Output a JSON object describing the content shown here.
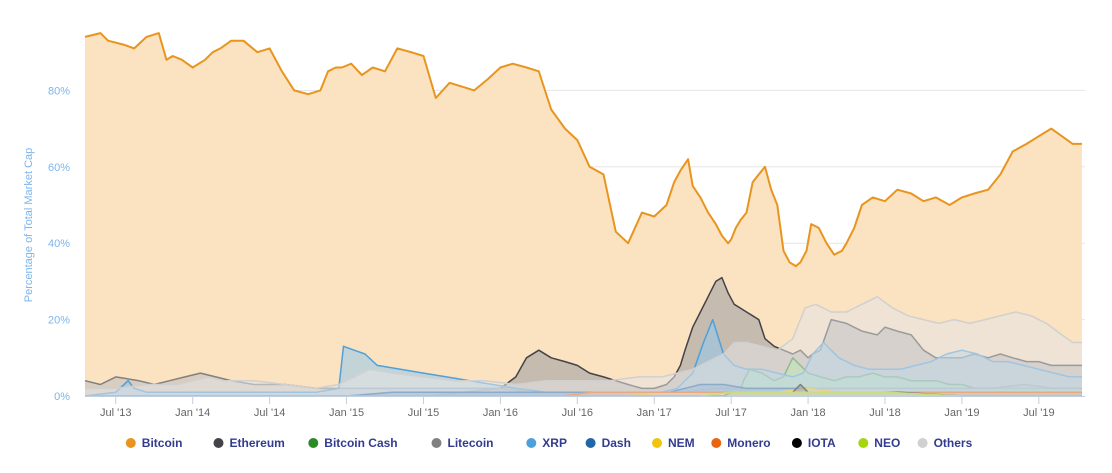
{
  "chart_data": {
    "type": "area",
    "ylabel": "Percentage of Total Market Cap",
    "xlabel": "",
    "ylim": [
      0,
      100
    ],
    "yticks": [
      0,
      20,
      40,
      60,
      80
    ],
    "ytick_labels": [
      "0%",
      "20%",
      "40%",
      "60%",
      "80%"
    ],
    "xticks": [
      {
        "x": 2013.5,
        "label": "Jul '13"
      },
      {
        "x": 2014.0,
        "label": "Jan '14"
      },
      {
        "x": 2014.5,
        "label": "Jul '14"
      },
      {
        "x": 2015.0,
        "label": "Jan '15"
      },
      {
        "x": 2015.5,
        "label": "Jul '15"
      },
      {
        "x": 2016.0,
        "label": "Jan '16"
      },
      {
        "x": 2016.5,
        "label": "Jul '16"
      },
      {
        "x": 2017.0,
        "label": "Jan '17"
      },
      {
        "x": 2017.5,
        "label": "Jul '17"
      },
      {
        "x": 2018.0,
        "label": "Jan '18"
      },
      {
        "x": 2018.5,
        "label": "Jul '18"
      },
      {
        "x": 2019.0,
        "label": "Jan '19"
      },
      {
        "x": 2019.5,
        "label": "Jul '19"
      }
    ],
    "xlim": [
      2013.3,
      2019.8
    ],
    "grid": true,
    "legend_position": "bottom",
    "series": [
      {
        "name": "Bitcoin",
        "color": "#e8951f",
        "fill": "#fbe2c1",
        "x": [
          2013.3,
          2013.4,
          2013.45,
          2013.55,
          2013.62,
          2013.7,
          2013.78,
          2013.83,
          2013.87,
          2013.93,
          2014.0,
          2014.08,
          2014.13,
          2014.18,
          2014.25,
          2014.33,
          2014.42,
          2014.5,
          2014.58,
          2014.66,
          2014.75,
          2014.83,
          2014.88,
          2014.93,
          2014.97,
          2015.03,
          2015.1,
          2015.17,
          2015.25,
          2015.33,
          2015.42,
          2015.5,
          2015.58,
          2015.67,
          2015.75,
          2015.83,
          2015.92,
          2016.0,
          2016.08,
          2016.17,
          2016.25,
          2016.33,
          2016.42,
          2016.5,
          2016.58,
          2016.67,
          2016.75,
          2016.83,
          2016.92,
          2017.0,
          2017.08,
          2017.13,
          2017.17,
          2017.22,
          2017.25,
          2017.3,
          2017.35,
          2017.4,
          2017.44,
          2017.48,
          2017.5,
          2017.53,
          2017.56,
          2017.6,
          2017.64,
          2017.68,
          2017.72,
          2017.76,
          2017.8,
          2017.84,
          2017.88,
          2017.92,
          2017.95,
          2017.99,
          2018.02,
          2018.07,
          2018.12,
          2018.17,
          2018.22,
          2018.25,
          2018.3,
          2018.35,
          2018.42,
          2018.5,
          2018.58,
          2018.67,
          2018.75,
          2018.83,
          2018.92,
          2019.0,
          2019.08,
          2019.17,
          2019.25,
          2019.33,
          2019.42,
          2019.5,
          2019.58,
          2019.65,
          2019.72,
          2019.78
        ],
        "y": [
          94,
          95,
          93,
          92,
          91,
          94,
          95,
          88,
          89,
          88,
          86,
          88,
          90,
          91,
          93,
          93,
          90,
          91,
          85,
          80,
          79,
          80,
          85,
          86,
          86,
          87,
          84,
          86,
          85,
          91,
          90,
          89,
          78,
          82,
          81,
          80,
          83,
          86,
          87,
          86,
          85,
          75,
          70,
          67,
          60,
          58,
          43,
          40,
          48,
          47,
          50,
          56,
          59,
          62,
          55,
          52,
          48,
          45,
          42,
          40,
          41,
          44,
          46,
          48,
          56,
          58,
          60,
          54,
          50,
          38,
          35,
          34,
          35,
          38,
          45,
          44,
          40,
          37,
          38,
          40,
          44,
          50,
          52,
          51,
          54,
          53,
          51,
          52,
          50,
          52,
          53,
          54,
          58,
          64,
          66,
          68,
          70,
          68,
          66,
          66
        ]
      },
      {
        "name": "Ethereum",
        "color": "#434348",
        "fill": "#9a9aa0",
        "x": [
          2013.3,
          2015.55,
          2015.75,
          2016.0,
          2016.1,
          2016.17,
          2016.25,
          2016.33,
          2016.42,
          2016.5,
          2016.58,
          2016.67,
          2016.75,
          2016.83,
          2016.92,
          2017.0,
          2017.08,
          2017.13,
          2017.17,
          2017.2,
          2017.25,
          2017.3,
          2017.35,
          2017.4,
          2017.44,
          2017.48,
          2017.52,
          2017.56,
          2017.6,
          2017.64,
          2017.68,
          2017.72,
          2017.78,
          2017.84,
          2017.9,
          2017.95,
          2018.0,
          2018.03,
          2018.08,
          2018.15,
          2018.25,
          2018.35,
          2018.45,
          2018.5,
          2018.58,
          2018.67,
          2018.75,
          2018.83,
          2018.92,
          2019.0,
          2019.08,
          2019.17,
          2019.25,
          2019.33,
          2019.42,
          2019.5,
          2019.58,
          2019.65,
          2019.72,
          2019.78
        ],
        "y": [
          0,
          0,
          1,
          2,
          5,
          10,
          12,
          10,
          9,
          8,
          6,
          5,
          4,
          3,
          2,
          2,
          3,
          5,
          8,
          12,
          18,
          22,
          26,
          30,
          31,
          27,
          24,
          23,
          22,
          21,
          20,
          15,
          13,
          12,
          11,
          12,
          10,
          11,
          12,
          20,
          19,
          17,
          16,
          18,
          17,
          16,
          12,
          10,
          10,
          10,
          11,
          10,
          11,
          10,
          9,
          9,
          8,
          8,
          8,
          8
        ]
      },
      {
        "name": "Bitcoin Cash",
        "color": "#2b8a28",
        "fill": "#90ed7d",
        "x": [
          2013.3,
          2017.55,
          2017.58,
          2017.62,
          2017.7,
          2017.78,
          2017.84,
          2017.9,
          2017.95,
          2018.0,
          2018.08,
          2018.17,
          2018.25,
          2018.33,
          2018.42,
          2018.5,
          2018.58,
          2018.67,
          2018.75,
          2018.83,
          2018.92,
          2019.0,
          2019.08,
          2019.17,
          2019.25,
          2019.33,
          2019.42,
          2019.5,
          2019.58,
          2019.65,
          2019.72,
          2019.78
        ],
        "y": [
          0,
          0,
          4,
          7,
          6,
          4,
          5,
          10,
          8,
          6,
          5,
          4,
          5,
          5,
          6,
          5,
          5,
          4,
          4,
          4,
          3,
          3,
          2,
          2,
          2,
          2,
          2,
          2,
          2,
          2,
          2,
          2
        ]
      },
      {
        "name": "Litecoin",
        "color": "#808080",
        "fill": "#bcbcbc",
        "x": [
          2013.3,
          2013.4,
          2013.5,
          2013.65,
          2013.75,
          2013.85,
          2013.95,
          2014.05,
          2014.15,
          2014.25,
          2014.4,
          2014.6,
          2014.8,
          2015.0,
          2015.2,
          2015.4,
          2015.6,
          2015.8,
          2016.0,
          2016.2,
          2016.4,
          2016.6,
          2016.8,
          2017.0,
          2017.2,
          2017.4,
          2017.6,
          2017.8,
          2018.0,
          2018.2,
          2018.4,
          2018.6,
          2018.8,
          2019.0,
          2019.2,
          2019.4,
          2019.6,
          2019.78
        ],
        "y": [
          4,
          3,
          5,
          4,
          3,
          4,
          5,
          6,
          5,
          4,
          3,
          3,
          2,
          2,
          2,
          2,
          2,
          2,
          2,
          1,
          1,
          1,
          1,
          1,
          1,
          2,
          2,
          2,
          2,
          2,
          2,
          2,
          2,
          2,
          2,
          3,
          2,
          2
        ]
      },
      {
        "name": "XRP",
        "color": "#4ea0dc",
        "fill": "#95c8ec",
        "x": [
          2013.3,
          2013.5,
          2013.58,
          2013.62,
          2013.7,
          2013.8,
          2014.0,
          2014.2,
          2014.4,
          2014.6,
          2014.8,
          2014.95,
          2014.98,
          2015.05,
          2015.12,
          2015.2,
          2015.35,
          2015.5,
          2015.65,
          2015.8,
          2015.95,
          2016.1,
          2016.3,
          2016.5,
          2016.7,
          2016.9,
          2017.05,
          2017.15,
          2017.25,
          2017.32,
          2017.38,
          2017.45,
          2017.52,
          2017.6,
          2017.7,
          2017.8,
          2017.9,
          2017.97,
          2018.03,
          2018.1,
          2018.2,
          2018.3,
          2018.4,
          2018.5,
          2018.6,
          2018.7,
          2018.8,
          2018.9,
          2019.0,
          2019.1,
          2019.2,
          2019.3,
          2019.4,
          2019.5,
          2019.6,
          2019.7,
          2019.78
        ],
        "y": [
          0,
          1,
          4,
          2,
          1,
          1,
          1,
          1,
          1,
          1,
          1,
          2,
          13,
          12,
          11,
          8,
          7,
          6,
          5,
          4,
          3,
          2,
          1,
          1,
          1,
          1,
          1,
          2,
          6,
          14,
          20,
          11,
          8,
          7,
          7,
          6,
          5,
          6,
          11,
          14,
          10,
          8,
          7,
          7,
          7,
          8,
          9,
          11,
          12,
          11,
          9,
          9,
          8,
          7,
          6,
          5,
          5
        ]
      },
      {
        "name": "Dash",
        "color": "#2266aa",
        "fill": "#5f8fc3",
        "x": [
          2013.3,
          2015.0,
          2015.3,
          2015.6,
          2016.0,
          2016.2,
          2016.4,
          2016.6,
          2016.8,
          2017.0,
          2017.1,
          2017.2,
          2017.3,
          2017.45,
          2017.6,
          2017.8,
          2018.0,
          2018.2,
          2018.4,
          2018.6,
          2018.8,
          2019.0,
          2019.2,
          2019.4,
          2019.6,
          2019.78
        ],
        "y": [
          0,
          0,
          1,
          1,
          1,
          1,
          1,
          1,
          1,
          1,
          1,
          2,
          3,
          3,
          2,
          2,
          2,
          1,
          1,
          1,
          1,
          1,
          1,
          1,
          1,
          1
        ]
      },
      {
        "name": "NEM",
        "color": "#f1c40f",
        "fill": "#f7e08a",
        "x": [
          2013.3,
          2016.8,
          2017.1,
          2017.3,
          2017.5,
          2017.8,
          2018.0,
          2018.2,
          2018.4,
          2018.6,
          2018.8,
          2019.0,
          2019.4,
          2019.78
        ],
        "y": [
          0,
          0,
          1,
          1,
          1,
          1,
          2,
          1,
          1,
          1,
          0,
          0,
          0,
          0
        ]
      },
      {
        "name": "Monero",
        "color": "#e8660e",
        "fill": "#f3a56e",
        "x": [
          2013.3,
          2016.4,
          2016.6,
          2017.0,
          2017.4,
          2017.8,
          2018.0,
          2018.4,
          2018.8,
          2019.2,
          2019.78
        ],
        "y": [
          0,
          0,
          1,
          1,
          1,
          1,
          1,
          1,
          1,
          1,
          1
        ]
      },
      {
        "name": "IOTA",
        "color": "#000000",
        "fill": "#555555",
        "x": [
          2013.3,
          2017.45,
          2017.5,
          2017.7,
          2017.9,
          2017.95,
          2018.0,
          2018.3,
          2018.6,
          2019.0,
          2019.78
        ],
        "y": [
          0,
          0,
          1,
          1,
          1,
          3,
          1,
          1,
          1,
          0,
          0
        ]
      },
      {
        "name": "NEO",
        "color": "#a6d60f",
        "fill": "#d6ee86",
        "x": [
          2013.3,
          2017.3,
          2017.5,
          2017.8,
          2018.0,
          2018.2,
          2018.5,
          2019.0,
          2019.78
        ],
        "y": [
          0,
          0,
          1,
          1,
          1,
          1,
          1,
          0,
          0
        ]
      },
      {
        "name": "Others",
        "color": "#d0d0d0",
        "fill": "#e4e4e4",
        "x": [
          2013.3,
          2013.5,
          2013.7,
          2013.9,
          2014.0,
          2014.1,
          2014.2,
          2014.4,
          2014.6,
          2014.8,
          2014.95,
          2015.05,
          2015.15,
          2015.3,
          2015.5,
          2015.7,
          2015.9,
          2016.1,
          2016.3,
          2016.5,
          2016.7,
          2016.9,
          2017.05,
          2017.15,
          2017.25,
          2017.35,
          2017.45,
          2017.52,
          2017.6,
          2017.7,
          2017.8,
          2017.9,
          2017.98,
          2018.05,
          2018.15,
          2018.25,
          2018.35,
          2018.45,
          2018.55,
          2018.65,
          2018.75,
          2018.85,
          2018.95,
          2019.05,
          2019.15,
          2019.25,
          2019.35,
          2019.45,
          2019.55,
          2019.65,
          2019.72,
          2019.78
        ],
        "y": [
          2,
          2,
          3,
          3,
          4,
          5,
          4,
          4,
          3,
          2,
          3,
          5,
          7,
          6,
          5,
          4,
          4,
          3,
          4,
          4,
          4,
          5,
          5,
          6,
          7,
          9,
          11,
          14,
          14,
          13,
          12,
          15,
          23,
          24,
          22,
          22,
          24,
          26,
          23,
          21,
          20,
          19,
          20,
          19,
          20,
          21,
          22,
          21,
          19,
          16,
          14,
          14
        ]
      }
    ]
  }
}
